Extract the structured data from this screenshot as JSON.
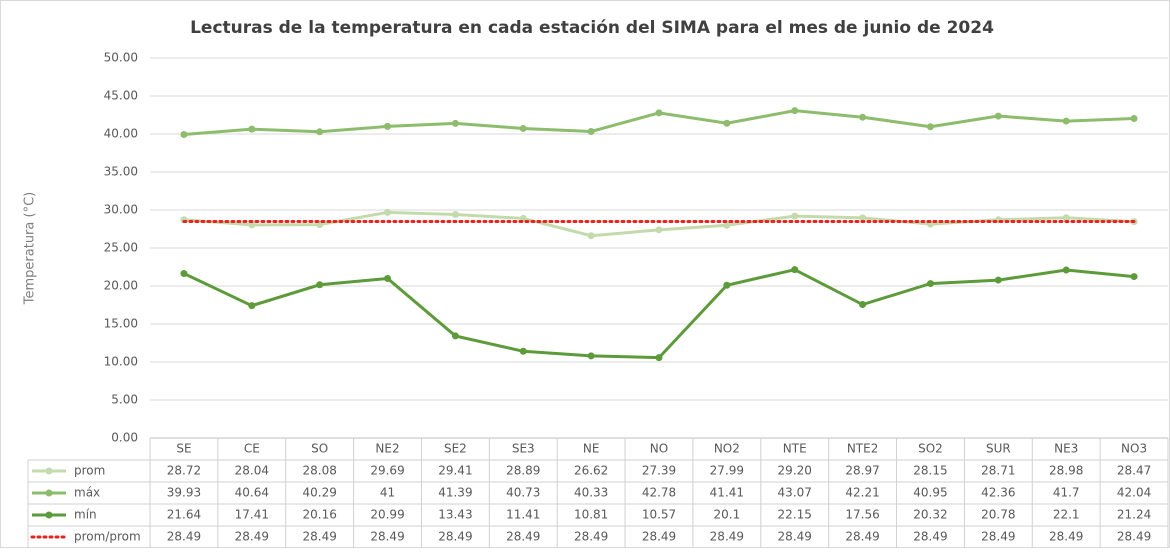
{
  "chart_data": {
    "type": "line",
    "title": "Lecturas de la temperatura en cada estación del SIMA para el mes de junio de 2024",
    "y_label": "Temperatura (°C)",
    "categories": [
      "SE",
      "CE",
      "SO",
      "NE2",
      "SE2",
      "SE3",
      "NE",
      "NO",
      "NO2",
      "NTE",
      "NTE2",
      "SO2",
      "SUR",
      "NE3",
      "NO3"
    ],
    "ylim": [
      0,
      50
    ],
    "yticks": [
      {
        "value": 0,
        "label": "0.00"
      },
      {
        "value": 5,
        "label": "5.00"
      },
      {
        "value": 10,
        "label": "10.00"
      },
      {
        "value": 15,
        "label": "15.00"
      },
      {
        "value": 20,
        "label": "20.00"
      },
      {
        "value": 25,
        "label": "25.00"
      },
      {
        "value": 30,
        "label": "30.00"
      },
      {
        "value": 35,
        "label": "35.00"
      },
      {
        "value": 40,
        "label": "40.00"
      },
      {
        "value": 45,
        "label": "45.00"
      },
      {
        "value": 50,
        "label": "50.00"
      }
    ],
    "grid": true,
    "series": [
      {
        "name": "prom",
        "color": "#c3dbac",
        "line_style": "solid",
        "markers": true,
        "values": [
          28.72,
          28.04,
          28.08,
          29.69,
          29.41,
          28.89,
          26.62,
          27.39,
          27.99,
          29.2,
          28.97,
          28.15,
          28.71,
          28.98,
          28.47
        ],
        "value_labels": [
          "28.72",
          "28.04",
          "28.08",
          "29.69",
          "29.41",
          "28.89",
          "26.62",
          "27.39",
          "27.99",
          "29.20",
          "28.97",
          "28.15",
          "28.71",
          "28.98",
          "28.47"
        ]
      },
      {
        "name": "máx",
        "color": "#8dbd6c",
        "line_style": "solid",
        "markers": true,
        "values": [
          39.93,
          40.64,
          40.29,
          41,
          41.39,
          40.73,
          40.33,
          42.78,
          41.41,
          43.07,
          42.21,
          40.95,
          42.36,
          41.7,
          42.04
        ],
        "value_labels": [
          "39.93",
          "40.64",
          "40.29",
          "41",
          "41.39",
          "40.73",
          "40.33",
          "42.78",
          "41.41",
          "43.07",
          "42.21",
          "40.95",
          "42.36",
          "41.7",
          "42.04"
        ]
      },
      {
        "name": "mín",
        "color": "#5d9b3a",
        "line_style": "solid",
        "markers": true,
        "values": [
          21.64,
          17.41,
          20.16,
          20.99,
          13.43,
          11.41,
          10.81,
          10.57,
          20.1,
          22.15,
          17.56,
          20.32,
          20.78,
          22.1,
          21.24
        ],
        "value_labels": [
          "21.64",
          "17.41",
          "20.16",
          "20.99",
          "13.43",
          "11.41",
          "10.81",
          "10.57",
          "20.1",
          "22.15",
          "17.56",
          "20.32",
          "20.78",
          "22.1",
          "21.24"
        ]
      },
      {
        "name": "prom/prom",
        "color": "#e3261f",
        "line_style": "dotted",
        "markers": false,
        "values": [
          28.49,
          28.49,
          28.49,
          28.49,
          28.49,
          28.49,
          28.49,
          28.49,
          28.49,
          28.49,
          28.49,
          28.49,
          28.49,
          28.49,
          28.49
        ],
        "value_labels": [
          "28.49",
          "28.49",
          "28.49",
          "28.49",
          "28.49",
          "28.49",
          "28.49",
          "28.49",
          "28.49",
          "28.49",
          "28.49",
          "28.49",
          "28.49",
          "28.49",
          "28.49"
        ]
      }
    ]
  }
}
